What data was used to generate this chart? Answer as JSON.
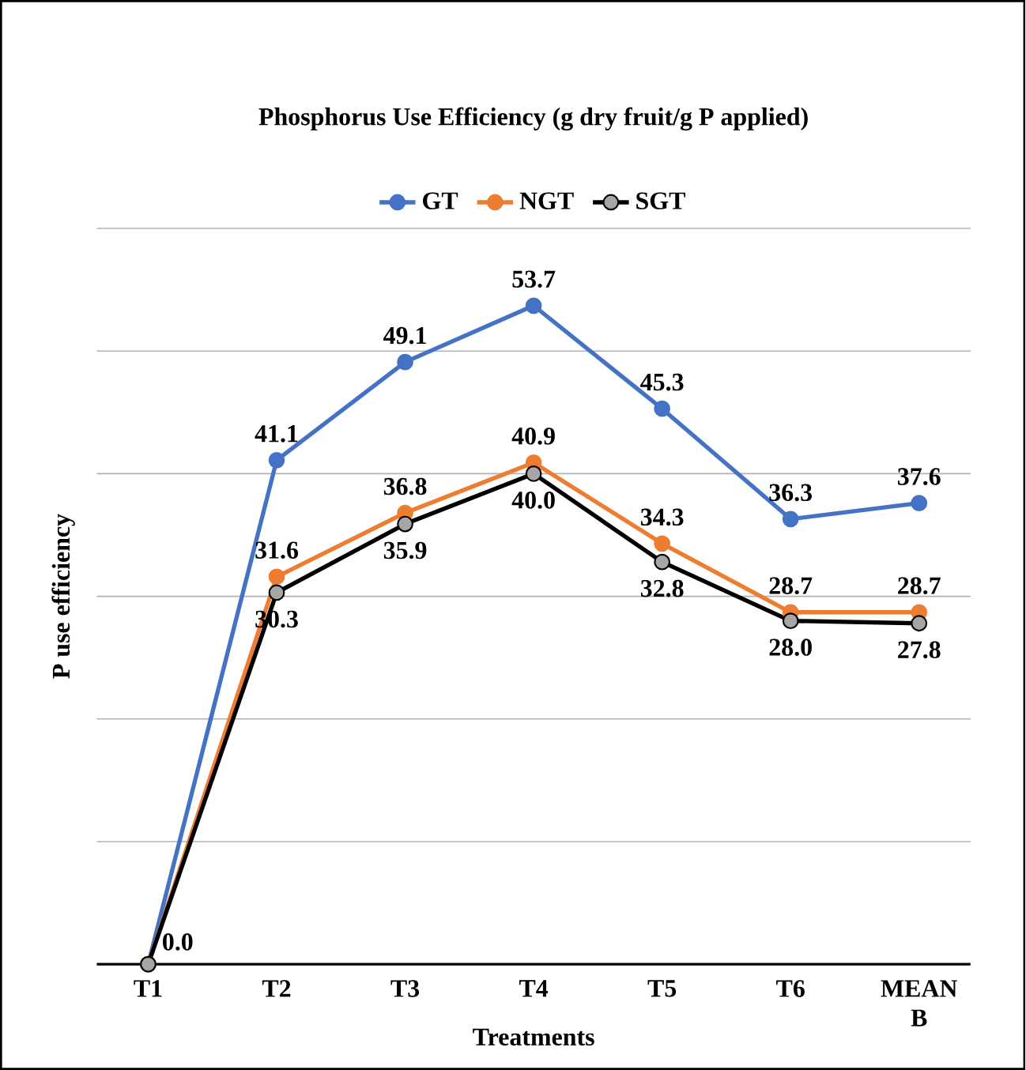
{
  "chart_data": {
    "type": "line",
    "title": "Phosphorus  Use Efficiency (g dry fruit/g P applied)",
    "xlabel": "Treatments",
    "ylabel": "P use efficiency",
    "categories": [
      "T1",
      "T2",
      "T3",
      "T4",
      "T5",
      "T6",
      "MEAN B"
    ],
    "series": [
      {
        "name": "GT",
        "color": "#4472c4",
        "values": [
          0.0,
          41.1,
          49.1,
          53.7,
          45.3,
          36.3,
          37.6
        ],
        "value_labels": [
          null,
          "41.1",
          "49.1",
          "53.7",
          "45.3",
          "36.3",
          "37.6"
        ]
      },
      {
        "name": "NGT",
        "color": "#ed7d31",
        "values": [
          0.0,
          31.6,
          36.8,
          40.9,
          34.3,
          28.7,
          28.7
        ],
        "value_labels": [
          null,
          "31.6",
          "36.8",
          "40.9",
          "34.3",
          "28.7",
          "28.7"
        ]
      },
      {
        "name": "SGT",
        "color": "#000000",
        "values": [
          0.0,
          30.3,
          35.9,
          40.0,
          32.8,
          28.0,
          27.8
        ],
        "value_labels": [
          "0.0",
          "30.3",
          "35.9",
          "40.0",
          "32.8",
          "28.0",
          "27.8"
        ]
      }
    ],
    "ylim": [
      0,
      60
    ],
    "yticks": [
      {
        "value": 0,
        "label": null
      },
      {
        "value": 10,
        "label": null
      },
      {
        "value": 20,
        "label": null
      },
      {
        "value": 30,
        "label": null
      },
      {
        "value": 40,
        "label": null
      },
      {
        "value": 50,
        "label": null
      },
      {
        "value": 60,
        "label": null
      }
    ],
    "tick_labels": "x",
    "grid": "y",
    "legend": "top",
    "marker": "circle",
    "line_style": "solid"
  }
}
